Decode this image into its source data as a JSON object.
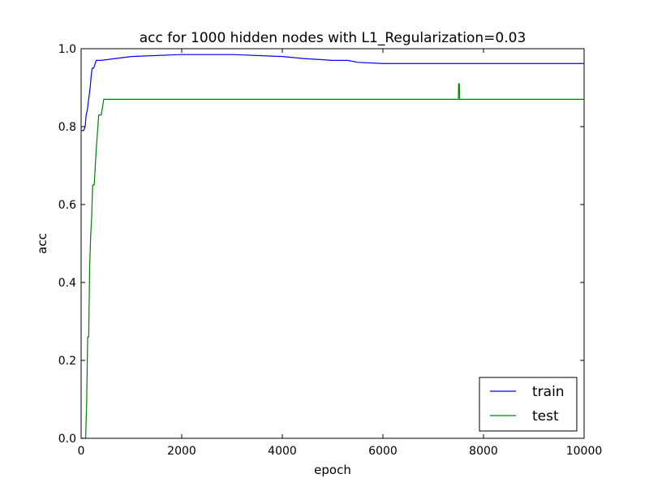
{
  "chart_data": {
    "type": "line",
    "title": "acc for 1000 hidden nodes with L1_Regularization=0.03",
    "xlabel": "epoch",
    "ylabel": "acc",
    "xlim": [
      0,
      10000
    ],
    "ylim": [
      0.0,
      1.0
    ],
    "x_ticks": [
      0,
      2000,
      4000,
      6000,
      8000,
      10000
    ],
    "y_ticks": [
      "0.0",
      "0.2",
      "0.4",
      "0.6",
      "0.8",
      "1.0"
    ],
    "grid": false,
    "legend_position": "bottom-right",
    "series": [
      {
        "name": "train",
        "color": "#0000ff",
        "x": [
          0,
          50,
          80,
          100,
          120,
          140,
          160,
          180,
          200,
          220,
          250,
          300,
          400,
          700,
          1000,
          2000,
          3000,
          4000,
          4400,
          5000,
          5300,
          5500,
          6000,
          9000,
          10000
        ],
        "y": [
          0.79,
          0.79,
          0.8,
          0.83,
          0.84,
          0.86,
          0.88,
          0.9,
          0.93,
          0.95,
          0.95,
          0.97,
          0.97,
          0.975,
          0.98,
          0.985,
          0.985,
          0.98,
          0.975,
          0.97,
          0.97,
          0.965,
          0.962,
          0.962,
          0.962
        ]
      },
      {
        "name": "test",
        "color": "#008000",
        "x": [
          0,
          50,
          90,
          110,
          130,
          150,
          170,
          190,
          210,
          230,
          260,
          300,
          350,
          400,
          450,
          500,
          1000,
          7500,
          7505,
          7520,
          7525,
          10000
        ],
        "y": [
          0.0,
          0.0,
          0.0,
          0.09,
          0.26,
          0.26,
          0.44,
          0.52,
          0.57,
          0.65,
          0.65,
          0.74,
          0.83,
          0.83,
          0.87,
          0.87,
          0.87,
          0.87,
          0.91,
          0.91,
          0.87,
          0.87
        ]
      }
    ]
  }
}
